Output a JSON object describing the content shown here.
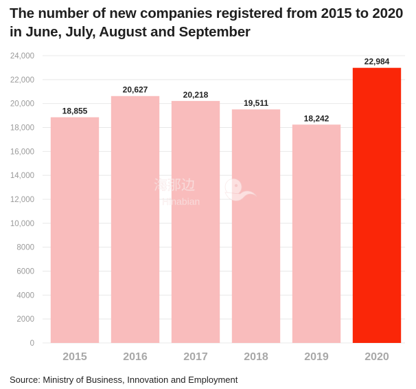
{
  "title": "The number of new companies registered from 2015 to 2020 in June, July, August and September",
  "source": "Source: Ministry of Business, Innovation and Employment",
  "watermark": {
    "cn": "海那边",
    "en": "Hinabian"
  },
  "colors": {
    "bar_default": "#f9bcbc",
    "bar_highlight": "#fa2608",
    "grid": "#e8e8e8",
    "tick_text": "#9a9a9a",
    "category_text": "#a8a8a8",
    "value_text": "#222222"
  },
  "chart_data": {
    "type": "bar",
    "title": "The number of new companies registered from 2015 to 2020 in June, July, August and September",
    "xlabel": "",
    "ylabel": "",
    "categories": [
      "2015",
      "2016",
      "2017",
      "2018",
      "2019",
      "2020"
    ],
    "values": [
      18855,
      20627,
      20218,
      19511,
      18242,
      22984
    ],
    "value_labels": [
      "18,855",
      "20,627",
      "20,218",
      "19,511",
      "18,242",
      "22,984"
    ],
    "highlight_index": 5,
    "ylim": [
      0,
      24000
    ],
    "yticks": [
      0,
      2000,
      4000,
      6000,
      8000,
      10000,
      12000,
      14000,
      16000,
      18000,
      20000,
      22000,
      24000
    ],
    "ytick_labels": [
      "0",
      "2000",
      "4000",
      "6000",
      "8000",
      "10,000",
      "12,000",
      "14,000",
      "16,000",
      "18,000",
      "20,000",
      "22,000",
      "24,000"
    ],
    "grid": true,
    "legend": "none"
  }
}
